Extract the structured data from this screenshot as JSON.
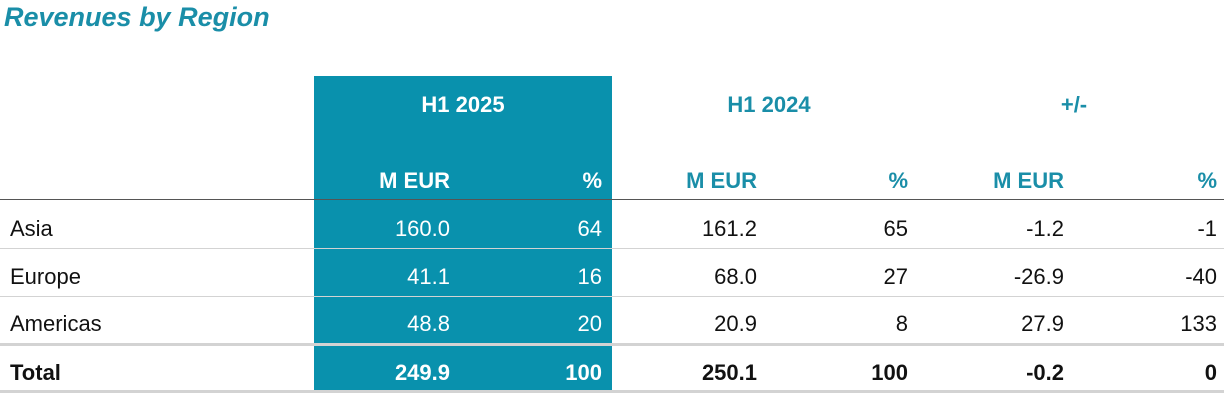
{
  "title": "Revenues by Region",
  "accent_color": "#0991ad",
  "header": {
    "groups": [
      "H1 2025",
      "H1 2024",
      "+/-"
    ],
    "units": [
      "M EUR",
      "%",
      "M EUR",
      "%",
      "M EUR",
      "%"
    ]
  },
  "rows": [
    {
      "label": "Asia",
      "values": [
        "160.0",
        "64",
        "161.2",
        "65",
        "-1.2",
        "-1"
      ]
    },
    {
      "label": "Europe",
      "values": [
        "41.1",
        "16",
        "68.0",
        "27",
        "-26.9",
        "-40"
      ]
    },
    {
      "label": "Americas",
      "values": [
        "48.8",
        "20",
        "20.9",
        "8",
        "27.9",
        "133"
      ]
    },
    {
      "label": "Total",
      "values": [
        "249.9",
        "100",
        "250.1",
        "100",
        "-0.2",
        "0"
      ]
    }
  ]
}
